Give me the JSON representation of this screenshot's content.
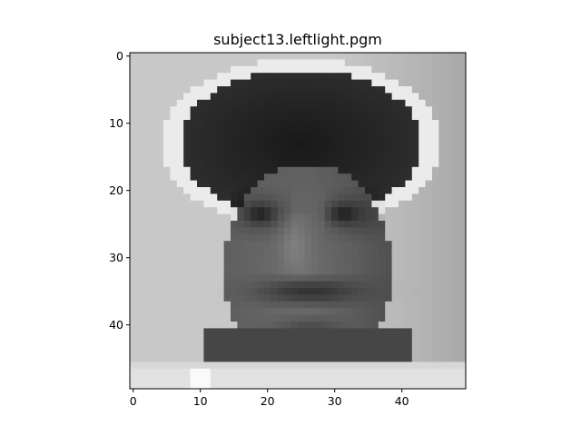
{
  "chart_data": {
    "type": "heatmap",
    "title": "subject13.leftlight.pgm",
    "colormap": "gray",
    "image_rows": 50,
    "image_cols": 50,
    "x_ticks": [
      0,
      10,
      20,
      30,
      40
    ],
    "y_ticks": [
      0,
      10,
      20,
      30,
      40
    ],
    "xlim": [
      -0.5,
      49.5
    ],
    "ylim": [
      49.5,
      -0.5
    ],
    "origin": "top-left",
    "grid": false
  }
}
